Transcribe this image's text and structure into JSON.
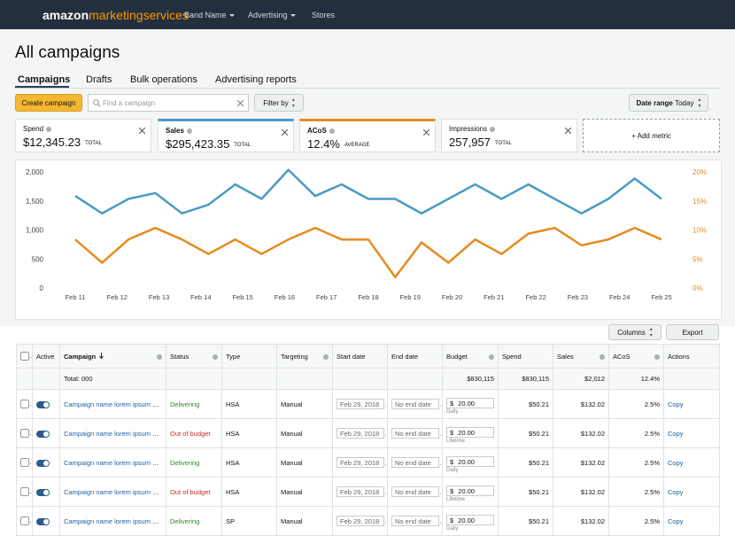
{
  "nav": {
    "brand_a": "amazon",
    "brand_b": "marketingservices",
    "items": [
      "Band Name",
      "Advertising",
      "Stores"
    ]
  },
  "title": "All campaigns",
  "tabs": [
    "Campaigns",
    "Drafts",
    "Bulk operations",
    "Advertising reports"
  ],
  "toolbar": {
    "create": "Create campaign",
    "search": "Find a campaign",
    "filter": "Filter by",
    "date_label": "Date range",
    "date_value": "Today"
  },
  "metrics": [
    {
      "label": "Spend",
      "value": "$12,345.23",
      "unit": "TOTAL"
    },
    {
      "label": "Sales",
      "value": "$295,423.35",
      "unit": "TOTAL",
      "color": "#4a9bc6"
    },
    {
      "label": "ACoS",
      "value": "12.4%",
      "unit": "AVERAGE",
      "color": "#e68a1f"
    },
    {
      "label": "Impressions",
      "value": "257,957",
      "unit": "TOTAL"
    }
  ],
  "add_metric": "+ Add metric",
  "chart_data": {
    "type": "line",
    "x": [
      11,
      11.64,
      12.27,
      12.91,
      13.55,
      14.18,
      14.82,
      15.45,
      16.09,
      16.73,
      17.36,
      18,
      18.64,
      19.27,
      19.91,
      20.55,
      21.18,
      21.82,
      22.45,
      23.09,
      23.73,
      24.36,
      25
    ],
    "xlim": [
      11,
      25
    ],
    "xticks": [
      {
        "value": 11,
        "label": "Feb 11"
      },
      {
        "value": 12,
        "label": "Feb 12"
      },
      {
        "value": 13,
        "label": "Feb 13"
      },
      {
        "value": 14,
        "label": "Feb 14"
      },
      {
        "value": 15,
        "label": "Feb 15"
      },
      {
        "value": 16,
        "label": "Feb 16"
      },
      {
        "value": 17,
        "label": "Feb 17"
      },
      {
        "value": 18,
        "label": "Feb 18"
      },
      {
        "value": 19,
        "label": "Feb 19"
      },
      {
        "value": 20,
        "label": "Feb 20"
      },
      {
        "value": 21,
        "label": "Feb 21"
      },
      {
        "value": 22,
        "label": "Feb 22"
      },
      {
        "value": 23,
        "label": "Feb 23"
      },
      {
        "value": 24,
        "label": "Feb 24"
      },
      {
        "value": 25,
        "label": "Feb 25"
      }
    ],
    "ylim": [
      0,
      2000
    ],
    "yticks": [
      0,
      500,
      {
        "value": 1000,
        "label": "1,000"
      },
      {
        "value": 1500,
        "label": "1,500"
      },
      {
        "value": 2000,
        "label": "2,000"
      }
    ],
    "y2lim": [
      0,
      20
    ],
    "y2ticks": [
      {
        "value": 0,
        "label": "0%"
      },
      {
        "value": 5,
        "label": "5%"
      },
      {
        "value": 10,
        "label": "10%"
      },
      {
        "value": 15,
        "label": "15%"
      },
      {
        "value": 20,
        "label": "20%"
      }
    ],
    "series": [
      {
        "color": "#4a9bc6",
        "values": [
          1600,
          1300,
          1550,
          1650,
          1300,
          1450,
          1800,
          1550,
          2050,
          1600,
          1800,
          1550,
          1550,
          1300,
          1550,
          1800,
          1550,
          1800,
          1550,
          1300,
          1550,
          1900,
          1550
        ]
      },
      {
        "color": "#e68a1f",
        "axis": "y2",
        "values": [
          8.5,
          4.5,
          8.5,
          10.5,
          8.5,
          6,
          8.5,
          6,
          8.5,
          10.5,
          8.5,
          8.5,
          2,
          8,
          4.5,
          8.5,
          6,
          9.5,
          10.5,
          7.5,
          8.5,
          10.5,
          8.5
        ]
      }
    ]
  },
  "buttons": {
    "columns": "Columns",
    "export": "Export"
  },
  "table": {
    "columns": [
      "Active",
      "Campaign",
      "Status",
      "Type",
      "Targeting",
      "Start date",
      "End date",
      "Budget",
      "Spend",
      "Sales",
      "ACoS",
      "Actions"
    ],
    "total": {
      "label": "Total: 000",
      "budget": "$830,115",
      "spend": "$830,115",
      "sales": "$2,012",
      "acos": "12.4%"
    },
    "rows": [
      {
        "name": "Campaign name lorem ipsum sit...",
        "status": "Delivering",
        "status_color": "#2a8a2a",
        "type": "HSA",
        "targeting": "Manual",
        "start_date": "Feb 29, 2018",
        "end_date": "No end date",
        "currency": "$",
        "budget": "20.00",
        "budget_type": "Daily",
        "spend": "$50.21",
        "sales": "$132.02",
        "acos": "2.5%",
        "action": "Copy"
      },
      {
        "name": "Campaign name lorem ipsum sit...",
        "status": "Out of budget",
        "status_color": "#c9302c",
        "type": "HSA",
        "targeting": "Manual",
        "start_date": "Feb 29, 2018",
        "end_date": "No end date",
        "currency": "$",
        "budget": "20.00",
        "budget_type": "Lifetime",
        "spend": "$50.21",
        "sales": "$132.02",
        "acos": "2.5%",
        "action": "Copy"
      },
      {
        "name": "Campaign name lorem ipsum sit...",
        "status": "Delivering",
        "status_color": "#2a8a2a",
        "type": "HSA",
        "targeting": "Manual",
        "start_date": "Feb 29, 2018",
        "end_date": "No end date",
        "currency": "$",
        "budget": "20.00",
        "budget_type": "Daily",
        "spend": "$50.21",
        "sales": "$132.02",
        "acos": "2.5%",
        "action": "Copy"
      },
      {
        "name": "Campaign name lorem ipsum sit...",
        "status": "Out of budget",
        "status_color": "#c9302c",
        "type": "HSA",
        "targeting": "Manual",
        "start_date": "Feb 29, 2018",
        "end_date": "No end date",
        "currency": "$",
        "budget": "20.00",
        "budget_type": "Lifetime",
        "spend": "$50.21",
        "sales": "$132.02",
        "acos": "2.5%",
        "action": "Copy"
      },
      {
        "name": "Campaign name lorem ipsum sit...",
        "status": "Delivering",
        "status_color": "#2a8a2a",
        "type": "SP",
        "targeting": "Manual",
        "start_date": "Feb 29, 2018",
        "end_date": "No end date",
        "currency": "$",
        "budget": "20.00",
        "budget_type": "Daily",
        "spend": "$50.21",
        "sales": "$132.02",
        "acos": "2.5%",
        "action": "Copy"
      }
    ]
  }
}
